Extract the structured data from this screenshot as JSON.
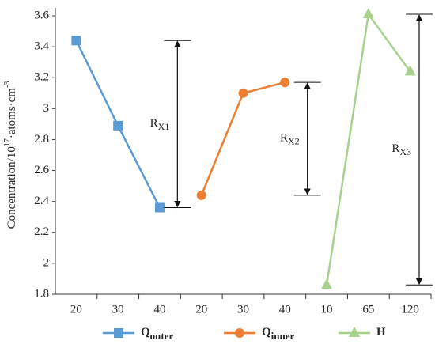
{
  "chart_data": {
    "type": "line",
    "ylabel_parts": [
      {
        "text": "Concentration/10"
      },
      {
        "text": "17",
        "sup": true
      },
      {
        "text": "·atoms·cm"
      },
      {
        "text": "-3",
        "sup": true
      }
    ],
    "categories": [
      "20",
      "30",
      "40",
      "20",
      "30",
      "40",
      "10",
      "65",
      "120"
    ],
    "series": [
      {
        "name": "Q",
        "name_sub": "outer",
        "color": "#5b9bd5",
        "marker": "square",
        "values": [
          3.44,
          2.89,
          2.36,
          null,
          null,
          null,
          null,
          null,
          null
        ]
      },
      {
        "name": "Q",
        "name_sub": "inner",
        "color": "#ed7d31",
        "marker": "circle",
        "values": [
          null,
          null,
          null,
          2.44,
          3.1,
          3.17,
          null,
          null,
          null
        ]
      },
      {
        "name": "H",
        "color": "#a9d18e",
        "marker": "triangle",
        "values": [
          null,
          null,
          null,
          null,
          null,
          null,
          1.86,
          3.61,
          3.24
        ]
      }
    ],
    "annotations": [
      {
        "text": "R",
        "sub": "X1"
      },
      {
        "text": "R",
        "sub": "X2"
      },
      {
        "text": "R",
        "sub": "X3"
      }
    ],
    "ylim": [
      1.8,
      3.6
    ],
    "yticks": [
      1.8,
      2,
      2.2,
      2.4,
      2.6,
      2.8,
      3,
      3.2,
      3.4,
      3.6
    ],
    "grid": false
  }
}
